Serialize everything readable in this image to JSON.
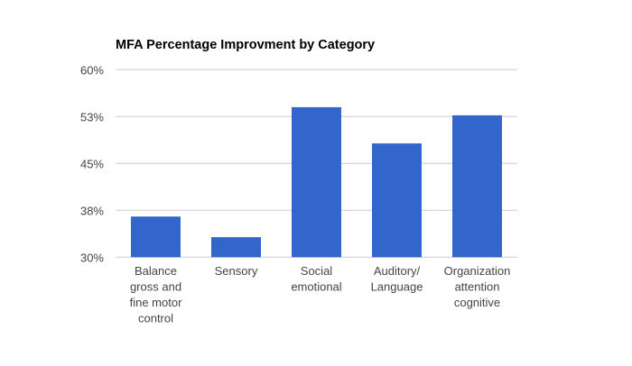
{
  "chart_data": {
    "type": "bar",
    "title": "MFA Percentage Improvment by Category",
    "xlabel": "",
    "ylabel": "",
    "categories": [
      [
        "Balance",
        "gross and",
        "fine motor",
        "control"
      ],
      [
        "Sensory"
      ],
      [
        "Social",
        "emotional"
      ],
      [
        "Auditory/",
        "Language"
      ],
      [
        "Organization",
        "attention",
        "cognitive"
      ]
    ],
    "values": [
      36.5,
      33.2,
      54.0,
      48.2,
      52.7
    ],
    "ylim": [
      30,
      60
    ],
    "yticks": [
      30,
      37.5,
      45,
      52.5,
      60
    ],
    "ytick_labels": [
      "30%",
      "38%",
      "45%",
      "53%",
      "60%"
    ],
    "grid": true,
    "legend": "none",
    "colors": {
      "bar": "#3366cc",
      "grid": "#cccccc",
      "text": "#444444",
      "title": "#000000"
    }
  }
}
